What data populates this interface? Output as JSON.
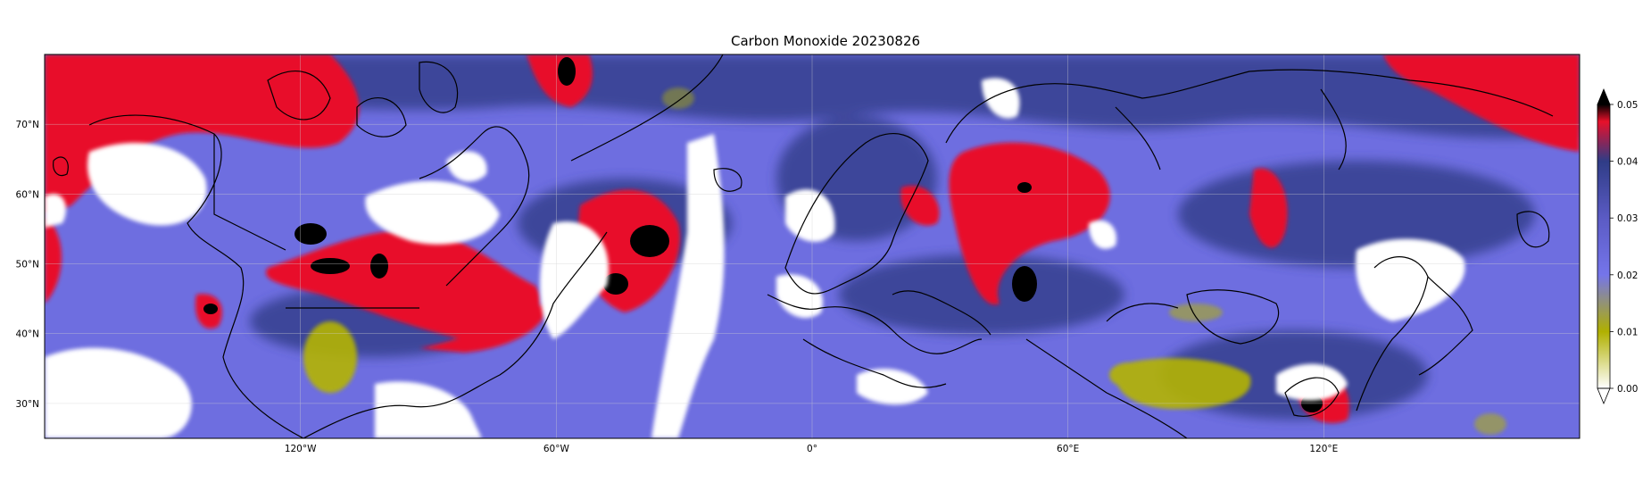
{
  "title": "Carbon Monoxide 20230826",
  "map": {
    "projection": "plate-carree",
    "lon_range": [
      -180,
      180
    ],
    "lat_range": [
      25,
      80
    ],
    "lon_ticks": [
      {
        "value": -120,
        "label": "120°W"
      },
      {
        "value": -60,
        "label": "60°W"
      },
      {
        "value": 0,
        "label": "0°"
      },
      {
        "value": 60,
        "label": "60°E"
      },
      {
        "value": 120,
        "label": "120°E"
      }
    ],
    "lat_ticks": [
      {
        "value": 30,
        "label": "30°N"
      },
      {
        "value": 40,
        "label": "40°N"
      },
      {
        "value": 50,
        "label": "50°N"
      },
      {
        "value": 60,
        "label": "60°N"
      },
      {
        "value": 70,
        "label": "70°N"
      }
    ],
    "colors": {
      "background": "#6e6ee0",
      "high": "#e8102a",
      "very_high": "#000000",
      "mid": "#2f3c86",
      "low": "#b5b500",
      "no_data": "#ffffff",
      "coast": "#000000"
    }
  },
  "colorbar": {
    "min": 0.0,
    "max": 0.05,
    "extend": "both",
    "ticks": [
      "0.00",
      "0.01",
      "0.02",
      "0.03",
      "0.04",
      "0.05"
    ],
    "stops": [
      {
        "value": 0.0,
        "color": "#ffffff"
      },
      {
        "value": 0.01,
        "color": "#b0b000"
      },
      {
        "value": 0.02,
        "color": "#7575ea"
      },
      {
        "value": 0.03,
        "color": "#5b5bc4"
      },
      {
        "value": 0.04,
        "color": "#2f3c86"
      },
      {
        "value": 0.047,
        "color": "#e8102a"
      },
      {
        "value": 0.05,
        "color": "#000000"
      }
    ]
  }
}
